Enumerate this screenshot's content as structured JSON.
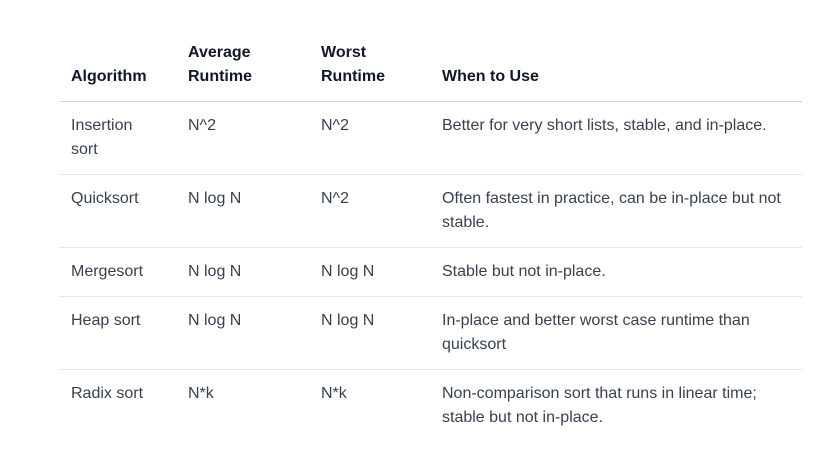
{
  "table": {
    "headers": {
      "algorithm": "Algorithm",
      "average": [
        "Average",
        "Runtime"
      ],
      "worst": [
        "Worst",
        "Runtime"
      ],
      "when": "When to Use"
    },
    "rows": [
      {
        "algorithm": [
          "Insertion",
          "sort"
        ],
        "average": "N^2",
        "worst": "N^2",
        "when": "Better for very short lists, stable, and in-place."
      },
      {
        "algorithm": [
          "Quicksort"
        ],
        "average": "N log N",
        "worst": "N^2",
        "when": "Often fastest in practice, can be in-place but not stable."
      },
      {
        "algorithm": [
          "Mergesort"
        ],
        "average": "N log N",
        "worst": "N log N",
        "when": "Stable but not in-place."
      },
      {
        "algorithm": [
          "Heap sort"
        ],
        "average": "N log N",
        "worst": "N log N",
        "when": "In-place and better worst case runtime than quicksort"
      },
      {
        "algorithm": [
          "Radix sort"
        ],
        "average": "N*k",
        "worst": "N*k",
        "when": "Non-comparison sort that runs in linear time; stable but not in-place."
      }
    ]
  }
}
